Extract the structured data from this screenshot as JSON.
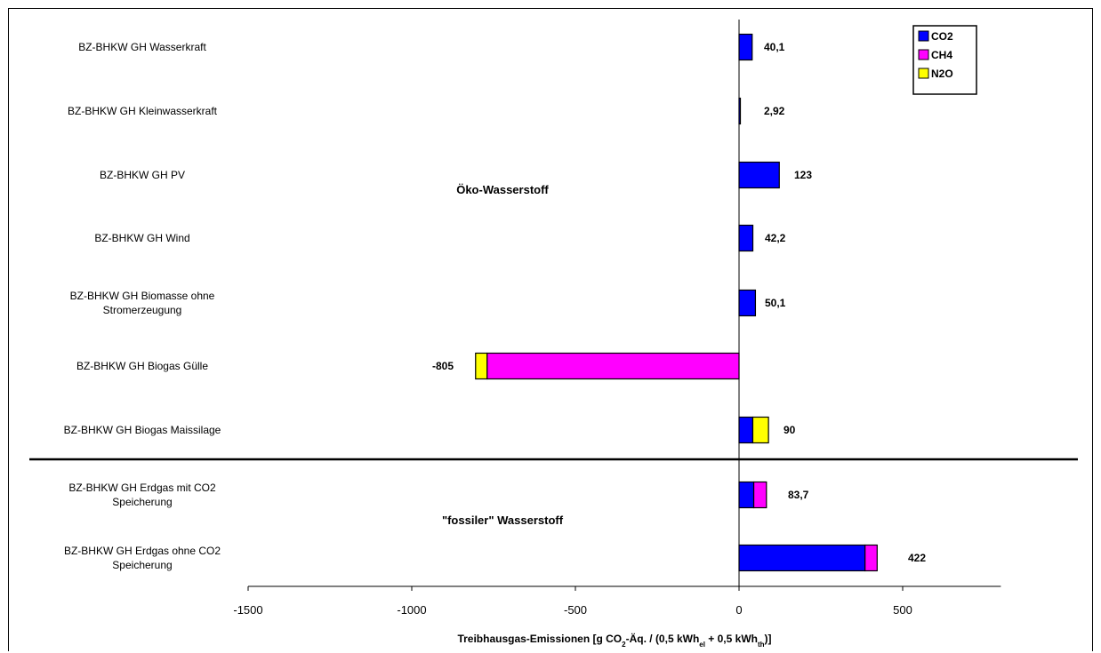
{
  "chart_data": {
    "type": "bar",
    "orientation": "horizontal",
    "stacked": true,
    "title": "",
    "xlabel_parts": [
      {
        "t": "Treibhausgas-Emissionen [g CO"
      },
      {
        "t": "2",
        "sub": true
      },
      {
        "t": "-Äq. / (0,5 kWh"
      },
      {
        "t": "el",
        "sub": true
      },
      {
        "t": " + 0,5 kWh"
      },
      {
        "t": "th",
        "sub": true
      },
      {
        "t": ")]"
      }
    ],
    "ylabel": "",
    "xlim": [
      -1500,
      800
    ],
    "xticks": [
      -1500,
      -1000,
      -500,
      0,
      500
    ],
    "xtick_labels": [
      "-1500",
      "-1000",
      "-500",
      "0",
      "500"
    ],
    "grid": false,
    "legend_position": "top-right",
    "categories": [
      [
        "BZ-BHKW GH Wasserkraft"
      ],
      [
        "BZ-BHKW GH Kleinwasserkraft"
      ],
      [
        "BZ-BHKW GH PV"
      ],
      [
        "BZ-BHKW GH Wind"
      ],
      [
        "BZ-BHKW GH Biomasse ohne",
        "Stromerzeugung"
      ],
      [
        "BZ-BHKW GH Biogas Gülle"
      ],
      [
        "BZ-BHKW GH Biogas Maissilage"
      ],
      [
        "BZ-BHKW GH Erdgas mit CO2",
        "Speicherung"
      ],
      [
        "BZ-BHKW GH Erdgas ohne CO2",
        "Speicherung"
      ]
    ],
    "series": [
      {
        "name": "CO2",
        "color": "#0000FF",
        "values": [
          40.1,
          2.92,
          123,
          42.2,
          50.1,
          0,
          42,
          45,
          385
        ]
      },
      {
        "name": "CH4",
        "color": "#FF00FF",
        "values": [
          0,
          0,
          0,
          0,
          0,
          -770,
          0,
          38.7,
          37
        ]
      },
      {
        "name": "N2O",
        "color": "#FFFF00",
        "values": [
          0,
          0,
          0,
          0,
          0,
          -35,
          48,
          0,
          0
        ]
      }
    ],
    "totals": [
      "40,1",
      "2,92",
      "123",
      "42,2",
      "50,1",
      "-805",
      "90",
      "83,7",
      "422"
    ],
    "group_labels": [
      "Öko-Wasserstoff",
      "\"fossiler\" Wasserstoff"
    ]
  }
}
